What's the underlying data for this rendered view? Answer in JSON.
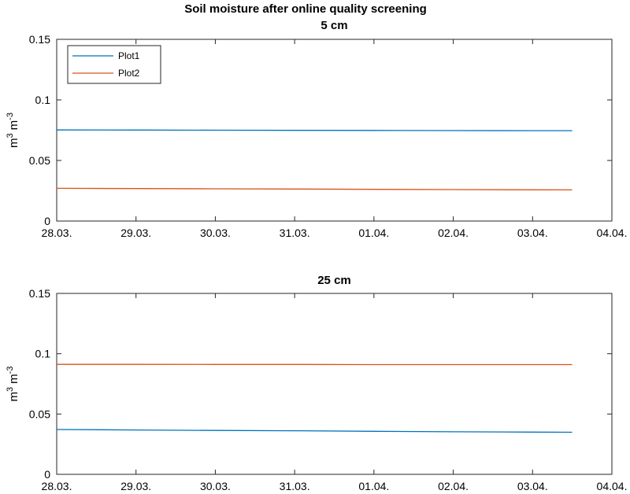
{
  "figure": {
    "suptitle": "Soil moisture after online quality screening"
  },
  "chart_data": [
    {
      "type": "line",
      "title": "5 cm",
      "xlabel": "",
      "ylabel": "m^3 m^-3",
      "ylabel_parts": {
        "unit1": "m",
        "exp1": "3",
        "unit2": "m",
        "exp2": "-3"
      },
      "x_ticks": [
        "28.03.",
        "29.03.",
        "30.03.",
        "31.03.",
        "01.04.",
        "02.04.",
        "03.04.",
        "04.04."
      ],
      "y_ticks": [
        "0",
        "0.05",
        "0.1",
        "0.15"
      ],
      "xlim": [
        "28.03.",
        "04.04."
      ],
      "ylim": [
        0,
        0.15
      ],
      "grid": false,
      "legend": {
        "placement": "top-left",
        "entries": [
          "Plot1",
          "Plot2"
        ]
      },
      "x": [
        "28.03.",
        "29.03.",
        "30.03.",
        "31.03.",
        "01.04.",
        "02.04.",
        "03.04.",
        "03.04. 12:00"
      ],
      "series": [
        {
          "name": "Plot1",
          "color": "#0072BD",
          "values": [
            0.0752,
            0.0751,
            0.075,
            0.0749,
            0.0748,
            0.0747,
            0.0746,
            0.0746
          ]
        },
        {
          "name": "Plot2",
          "color": "#D95319",
          "values": [
            0.027,
            0.0268,
            0.0266,
            0.0264,
            0.0262,
            0.026,
            0.0258,
            0.0257
          ]
        }
      ]
    },
    {
      "type": "line",
      "title": "25 cm",
      "xlabel": "",
      "ylabel": "m^3 m^-3",
      "ylabel_parts": {
        "unit1": "m",
        "exp1": "3",
        "unit2": "m",
        "exp2": "-3"
      },
      "x_ticks": [
        "28.03.",
        "29.03.",
        "30.03.",
        "31.03.",
        "01.04.",
        "02.04.",
        "03.04.",
        "04.04."
      ],
      "y_ticks": [
        "0",
        "0.05",
        "0.1",
        "0.15"
      ],
      "xlim": [
        "28.03.",
        "04.04."
      ],
      "ylim": [
        0,
        0.15
      ],
      "grid": false,
      "legend": null,
      "x": [
        "28.03.",
        "29.03.",
        "30.03.",
        "31.03.",
        "01.04.",
        "02.04.",
        "03.04.",
        "03.04. 12:00"
      ],
      "series": [
        {
          "name": "Plot1",
          "color": "#0072BD",
          "values": [
            0.0372,
            0.0368,
            0.0364,
            0.0361,
            0.0357,
            0.0353,
            0.035,
            0.0349
          ]
        },
        {
          "name": "Plot2",
          "color": "#D95319",
          "values": [
            0.0912,
            0.0912,
            0.0911,
            0.0911,
            0.091,
            0.091,
            0.091,
            0.091
          ]
        }
      ]
    }
  ]
}
